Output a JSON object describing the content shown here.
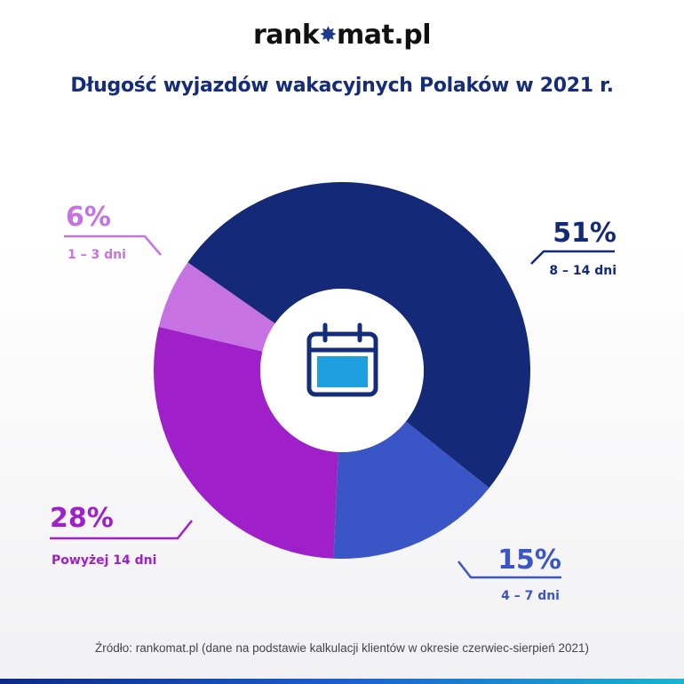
{
  "brand": {
    "name_left": "rank",
    "name_right": "mat.pl"
  },
  "title": "Długość wyjazdów wakacyjnych Polaków w 2021 r.",
  "source": "Źródło: rankomat.pl (dane na podstawie kalkulacji klientów w okresie czerwiec-sierpień 2021)",
  "colors": {
    "accent": "#152c7a",
    "center_icon": "#1e9fe0",
    "bottom_bar_start": "#0c2a86",
    "bottom_bar_end": "#17b5cf"
  },
  "center_icon": "calendar-icon",
  "chart_data": {
    "type": "pie",
    "title": "Długość wyjazdów wakacyjnych Polaków w 2021 r.",
    "categories": [
      "8 – 14 dni",
      "4 – 7 dni",
      "Powyżej 14 dni",
      "1 – 3 dni"
    ],
    "values": [
      51,
      15,
      28,
      6
    ],
    "labels": [
      "51%",
      "15%",
      "28%",
      "6%"
    ],
    "colors": [
      "#142a78",
      "#3a55c6",
      "#9f20c9",
      "#c772e3"
    ],
    "donut": true
  }
}
